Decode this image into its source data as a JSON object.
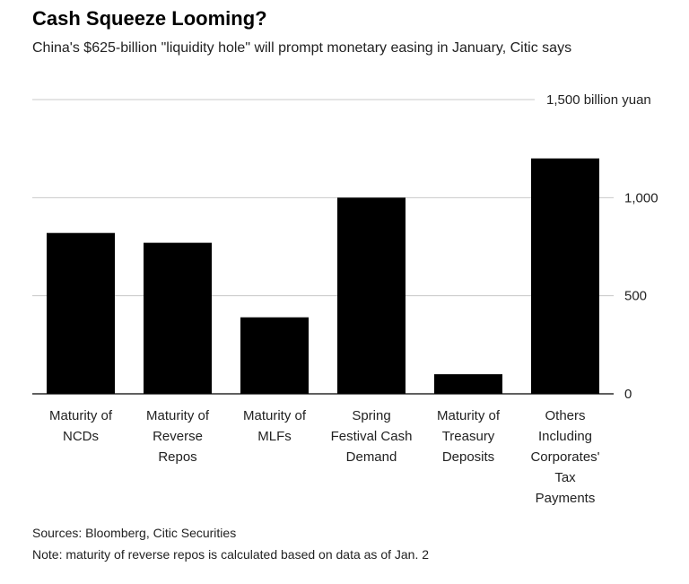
{
  "title": "Cash Squeeze Looming?",
  "subtitle": "China's $625-billion \"liquidity hole\" will prompt monetary easing in January, Citic says",
  "sources": "Sources: Bloomberg, Citic Securities",
  "note": "Note: maturity of reverse repos is calculated based on data as of Jan. 2",
  "chart_data": {
    "type": "bar",
    "title": "Cash Squeeze Looming?",
    "subtitle": "China's $625-billion \"liquidity hole\" will prompt monetary easing in January, Citic says",
    "ylabel": "",
    "unit": "billion yuan",
    "ylim": [
      0,
      1500
    ],
    "yticks": [
      0,
      500,
      1000,
      1500
    ],
    "ytick_labels": [
      "0",
      "500",
      "1,000",
      "1,500 billion yuan"
    ],
    "categories": [
      [
        "Maturity of",
        "NCDs"
      ],
      [
        "Maturity of",
        "Reverse",
        "Repos"
      ],
      [
        "Maturity of",
        "MLFs"
      ],
      [
        "Spring",
        "Festival Cash",
        "Demand"
      ],
      [
        "Maturity of",
        "Treasury",
        "Deposits"
      ],
      [
        "Others",
        "Including",
        "Corporates'",
        "Tax",
        "Payments"
      ]
    ],
    "values": [
      820,
      770,
      390,
      1000,
      100,
      1200
    ],
    "bar_color": "#000000",
    "grid": true,
    "axis_position": "right"
  }
}
